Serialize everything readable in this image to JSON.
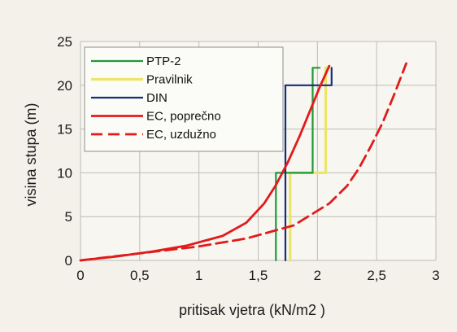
{
  "chart_data": {
    "type": "line",
    "title": "",
    "xlabel": "pritisak vjetra (kN/m2  )",
    "ylabel": "visina stupa (m)",
    "xlim": [
      0,
      3
    ],
    "ylim": [
      0,
      25
    ],
    "x_ticks": [
      "0",
      "0,5",
      "1",
      "1,5",
      "2",
      "2,5",
      "3"
    ],
    "y_ticks": [
      "0",
      "5",
      "10",
      "15",
      "20",
      "25"
    ],
    "x_tick_values": [
      0,
      0.5,
      1,
      1.5,
      2,
      2.5,
      3
    ],
    "y_tick_values": [
      0,
      5,
      10,
      15,
      20,
      25
    ],
    "grid": true,
    "legend_position": "top-left",
    "series": [
      {
        "name": "PTP-2",
        "style": "step",
        "color": "#1f9a3a",
        "points": [
          [
            1.65,
            0
          ],
          [
            1.65,
            10
          ],
          [
            1.96,
            10
          ],
          [
            1.96,
            22
          ],
          [
            2.02,
            22
          ]
        ]
      },
      {
        "name": "Pravilnik",
        "style": "step",
        "color": "#ece56a",
        "points": [
          [
            1.77,
            0
          ],
          [
            1.77,
            10
          ],
          [
            2.07,
            10
          ],
          [
            2.07,
            22
          ],
          [
            2.1,
            22
          ]
        ]
      },
      {
        "name": "DIN",
        "style": "step",
        "color": "#1a2d7a",
        "points": [
          [
            1.73,
            0
          ],
          [
            1.73,
            20
          ],
          [
            2.12,
            20
          ],
          [
            2.12,
            22
          ]
        ]
      },
      {
        "name": "EC, poprečno",
        "style": "solid",
        "color": "#e11b1b",
        "points": [
          [
            0,
            0
          ],
          [
            0.3,
            0.45
          ],
          [
            0.6,
            1.0
          ],
          [
            0.9,
            1.7
          ],
          [
            1.2,
            2.8
          ],
          [
            1.4,
            4.3
          ],
          [
            1.55,
            6.5
          ],
          [
            1.65,
            8.6
          ],
          [
            1.75,
            11.2
          ],
          [
            1.85,
            14.2
          ],
          [
            1.95,
            17.5
          ],
          [
            2.02,
            19.8
          ],
          [
            2.1,
            22.2
          ]
        ]
      },
      {
        "name": "EC, uzdužno",
        "style": "dashed",
        "color": "#e11b1b",
        "points": [
          [
            0,
            0
          ],
          [
            0.5,
            0.8
          ],
          [
            1.0,
            1.6
          ],
          [
            1.4,
            2.5
          ],
          [
            1.8,
            4.0
          ],
          [
            2.1,
            6.5
          ],
          [
            2.25,
            8.5
          ],
          [
            2.35,
            10.5
          ],
          [
            2.45,
            13.0
          ],
          [
            2.55,
            15.7
          ],
          [
            2.65,
            19.0
          ],
          [
            2.75,
            22.5
          ]
        ]
      }
    ]
  }
}
